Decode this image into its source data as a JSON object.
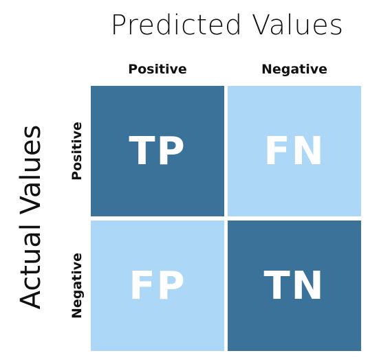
{
  "titles": {
    "predicted": "Predicted Values",
    "actual": "Actual Values"
  },
  "columns": [
    "Positive",
    "Negative"
  ],
  "rows": [
    "Positive",
    "Negative"
  ],
  "cells": {
    "tp": "TP",
    "fn": "FN",
    "fp": "FP",
    "tn": "TN"
  },
  "colors": {
    "dark": "#3b7299",
    "light": "#acd7f6"
  }
}
